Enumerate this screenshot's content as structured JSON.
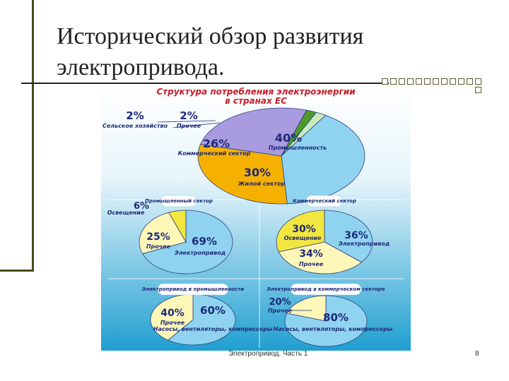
{
  "slide": {
    "title_line1": "Исторический обзор развития",
    "title_line2": "электропривода.",
    "footer": "Электропривод. Часть 1",
    "page_number": "8"
  },
  "colors": {
    "accent": "#4d4a1a",
    "panel_bg_top": "#ffffff",
    "panel_bg_bottom": "#1f9fd1",
    "label_text": "#1e2a7a",
    "title_text": "#c61c2a"
  },
  "chart_data": [
    {
      "type": "pie",
      "title_line1": "Структура потребления электроэнергии",
      "title_line2": "в странах ЕС",
      "slices": [
        {
          "label": "Промышленность",
          "value": 40,
          "text": "40%",
          "color": "#8fd3f0"
        },
        {
          "label": "Жилой сектор",
          "value": 30,
          "text": "30%",
          "color": "#f6b100"
        },
        {
          "label": "Коммерческий сектор",
          "value": 26,
          "text": "26%",
          "color": "#a99be0"
        },
        {
          "label": "Сельское хозяйство",
          "value": 2,
          "text": "2%",
          "color": "#4f9a2a"
        },
        {
          "label": "Прочее",
          "value": 2,
          "text": "2%",
          "color": "#c8ecc0"
        }
      ]
    },
    {
      "type": "pie",
      "title": "Промышленный сектор",
      "slices": [
        {
          "label": "Электропривод",
          "value": 69,
          "text": "69%",
          "color": "#8fd3f0"
        },
        {
          "label": "Прочее",
          "value": 25,
          "text": "25%",
          "color": "#fff7b8"
        },
        {
          "label": "Освещение",
          "value": 6,
          "text": "6%",
          "color": "#f2e640"
        }
      ]
    },
    {
      "type": "pie",
      "title": "Коммерческий сектор",
      "slices": [
        {
          "label": "Электропривод",
          "value": 36,
          "text": "36%",
          "color": "#8fd3f0"
        },
        {
          "label": "Прочее",
          "value": 34,
          "text": "34%",
          "color": "#fff7b8"
        },
        {
          "label": "Освещение",
          "value": 30,
          "text": "30%",
          "color": "#f2e640"
        }
      ]
    },
    {
      "type": "pie",
      "title": "Электропривод в промышленности",
      "slices": [
        {
          "label": "Насосы, вентиляторы, компрессоры",
          "value": 60,
          "text": "60%",
          "color": "#8fd3f0"
        },
        {
          "label": "Прочее",
          "value": 40,
          "text": "40%",
          "color": "#fff7b8"
        }
      ]
    },
    {
      "type": "pie",
      "title": "Электропривод в коммерческом секторе",
      "slices": [
        {
          "label": "Насосы, вентиляторы, компрессоры",
          "value": 80,
          "text": "80%",
          "color": "#8fd3f0"
        },
        {
          "label": "Прочее",
          "value": 20,
          "text": "20%",
          "color": "#fff7b8"
        }
      ]
    }
  ]
}
